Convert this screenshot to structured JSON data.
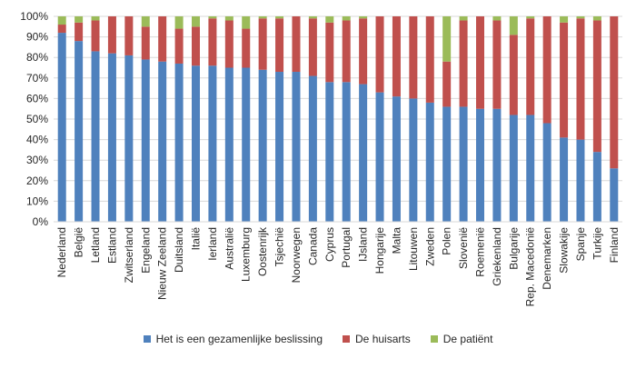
{
  "chart_data": {
    "type": "bar",
    "stacked": true,
    "percent": true,
    "title": "",
    "xlabel": "",
    "ylabel": "",
    "ylim": [
      0,
      100
    ],
    "yticks": [
      "0%",
      "10%",
      "20%",
      "30%",
      "40%",
      "50%",
      "60%",
      "70%",
      "80%",
      "90%",
      "100%"
    ],
    "categories": [
      "Nederland",
      "België",
      "Letland",
      "Estland",
      "Zwitserland",
      "Engeland",
      "Nieuw Zeeland",
      "Duitsland",
      "Italië",
      "Ierland",
      "Australië",
      "Luxemburg",
      "Oostenrijk",
      "Tsjechië",
      "Noorwegen",
      "Canada",
      "Cyprus",
      "Portugal",
      "IJsland",
      "Hongarije",
      "Malta",
      "Litouwen",
      "Zweden",
      "Polen",
      "Slovenië",
      "Roemenië",
      "Griekenland",
      "Bulgarije",
      "Rep. Macedonië",
      "Denemarken",
      "Slowakije",
      "Spanje",
      "Turkije",
      "Finland"
    ],
    "series": [
      {
        "name": "Het is een gezamenlijke beslissing",
        "color": "#4F81BD",
        "values": [
          92,
          88,
          83,
          82,
          81,
          79,
          78,
          77,
          76,
          76,
          75,
          75,
          74,
          73,
          73,
          71,
          68,
          68,
          67,
          63,
          61,
          60,
          58,
          56,
          56,
          55,
          55,
          52,
          52,
          48,
          41,
          40,
          34,
          26
        ]
      },
      {
        "name": "De huisarts",
        "color": "#C0504D",
        "values": [
          4,
          9,
          15,
          18,
          19,
          16,
          22,
          17,
          19,
          23,
          23,
          19,
          25,
          26,
          27,
          28,
          29,
          30,
          32,
          37,
          39,
          40,
          42,
          22,
          42,
          45,
          43,
          39,
          47,
          52,
          56,
          59,
          64,
          74
        ]
      },
      {
        "name": "De patiënt",
        "color": "#9BBB59",
        "values": [
          4,
          3,
          2,
          0,
          0,
          5,
          0,
          6,
          5,
          1,
          2,
          6,
          1,
          1,
          0,
          1,
          3,
          2,
          1,
          0,
          0,
          0,
          0,
          22,
          2,
          0,
          2,
          9,
          1,
          0,
          3,
          1,
          2,
          0
        ]
      }
    ],
    "legend_position": "bottom",
    "grid": true
  }
}
